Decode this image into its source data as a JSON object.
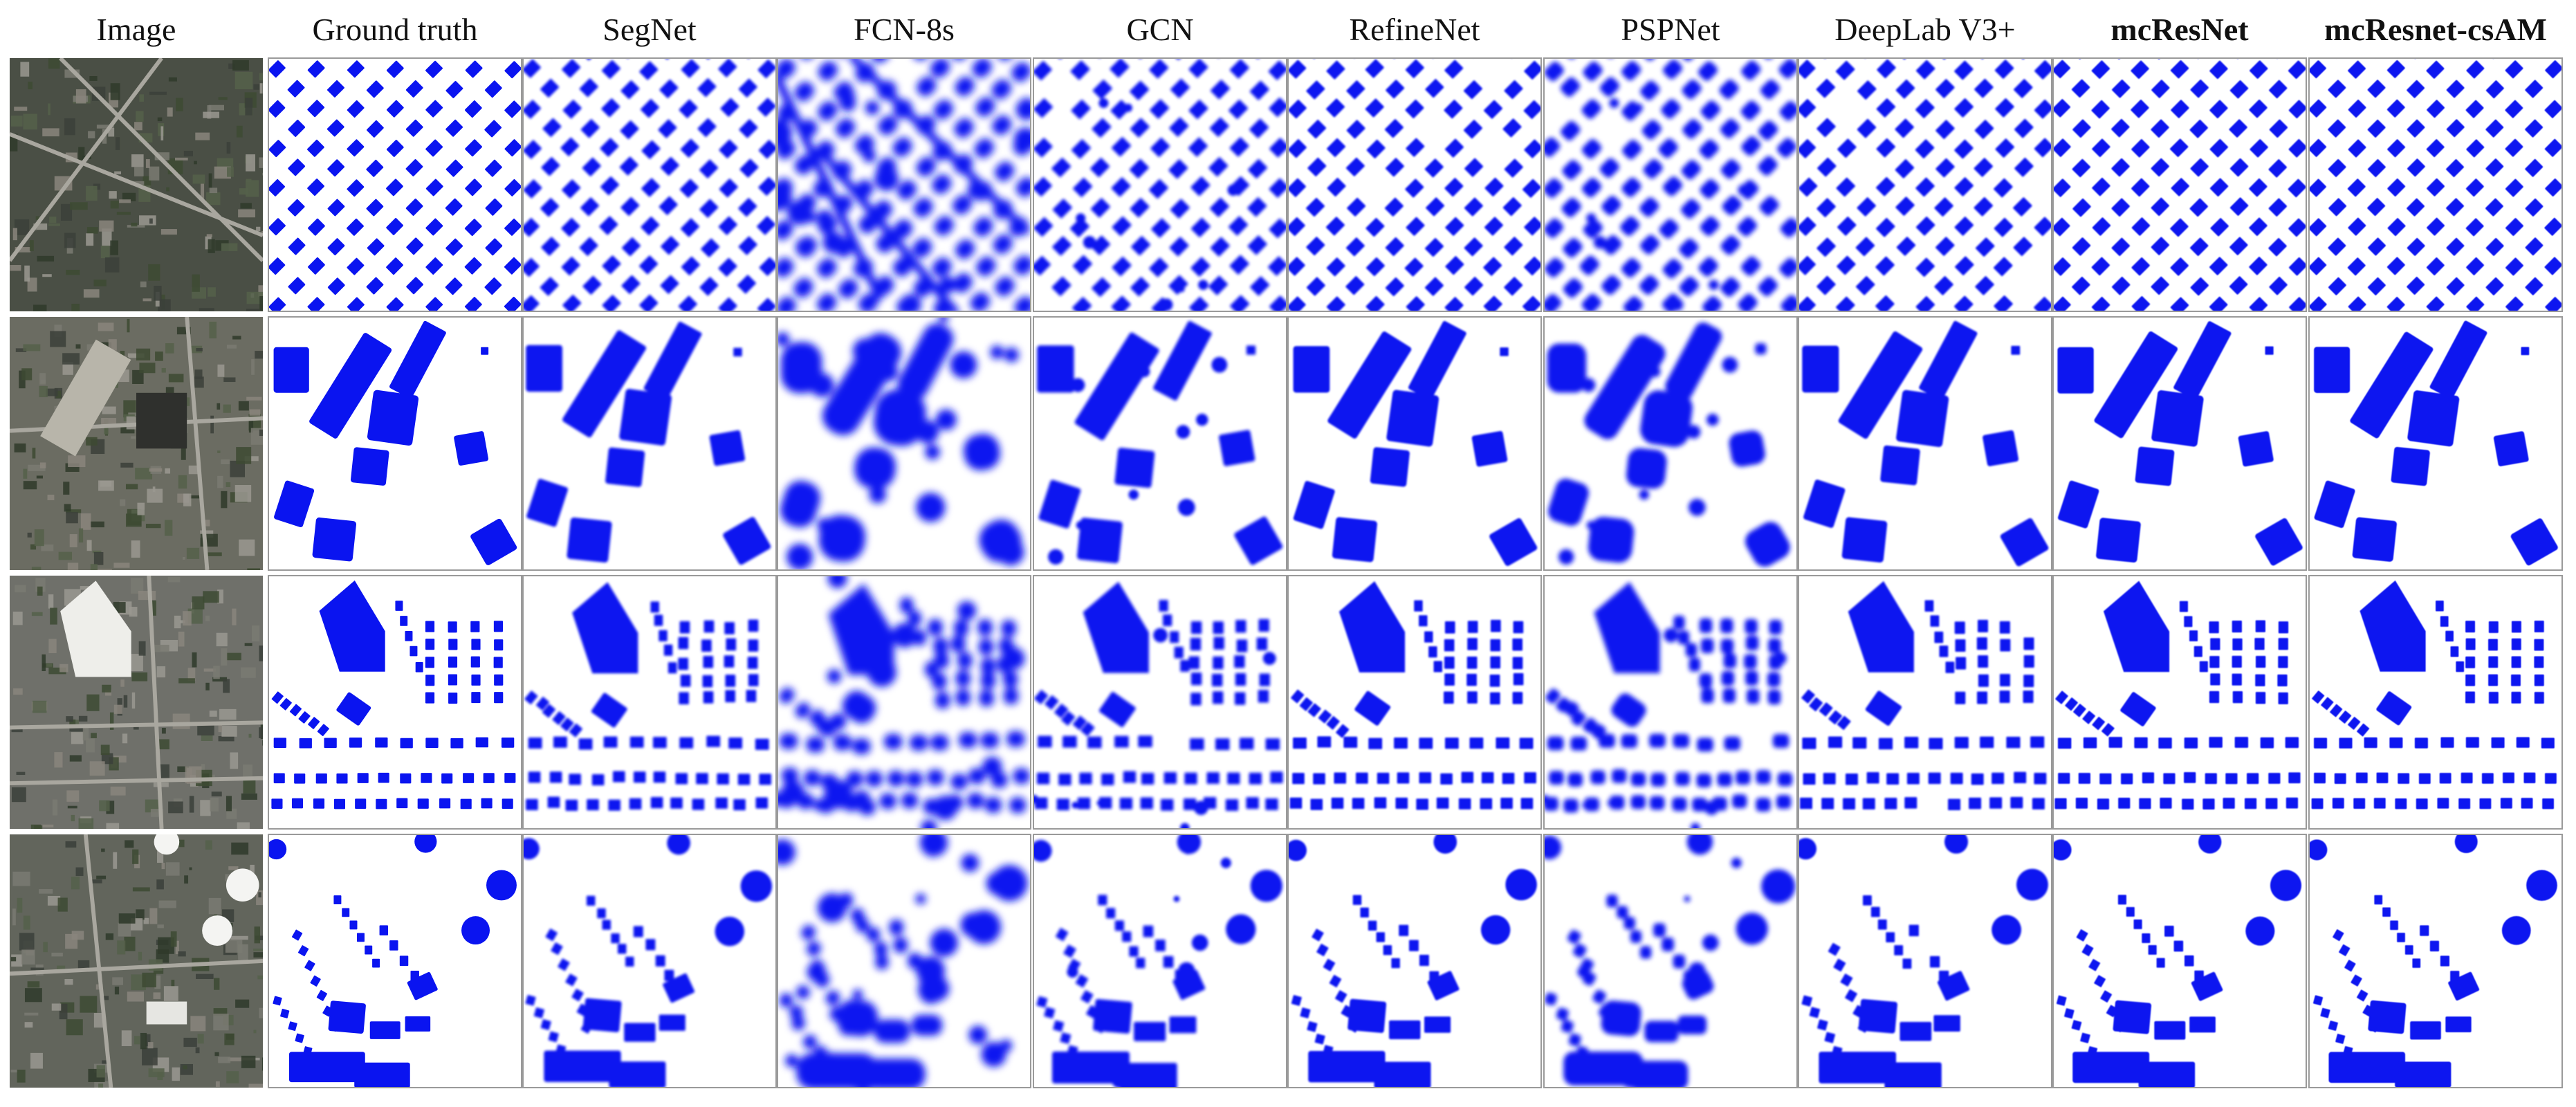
{
  "columns": [
    {
      "label": "Image",
      "bold": false
    },
    {
      "label": "Ground truth",
      "bold": false
    },
    {
      "label": "SegNet",
      "bold": false
    },
    {
      "label": "FCN-8s",
      "bold": false
    },
    {
      "label": "GCN",
      "bold": false
    },
    {
      "label": "RefineNet",
      "bold": false
    },
    {
      "label": "PSPNet",
      "bold": false
    },
    {
      "label": "DeepLab  V3+",
      "bold": false
    },
    {
      "label": "mcResNet",
      "bold": true
    },
    {
      "label": "mcResnet-csAM",
      "bold": true
    }
  ],
  "rows": [
    {
      "scene": "suburban-diagonal-houses"
    },
    {
      "scene": "large-office-buildings"
    },
    {
      "scene": "mall-and-residential-blocks"
    },
    {
      "scene": "storage-tanks-and-town"
    }
  ],
  "colors": {
    "mask_foreground": "#0a14f0",
    "mask_background": "#ffffff",
    "cell_border": "#9a9a9a"
  }
}
